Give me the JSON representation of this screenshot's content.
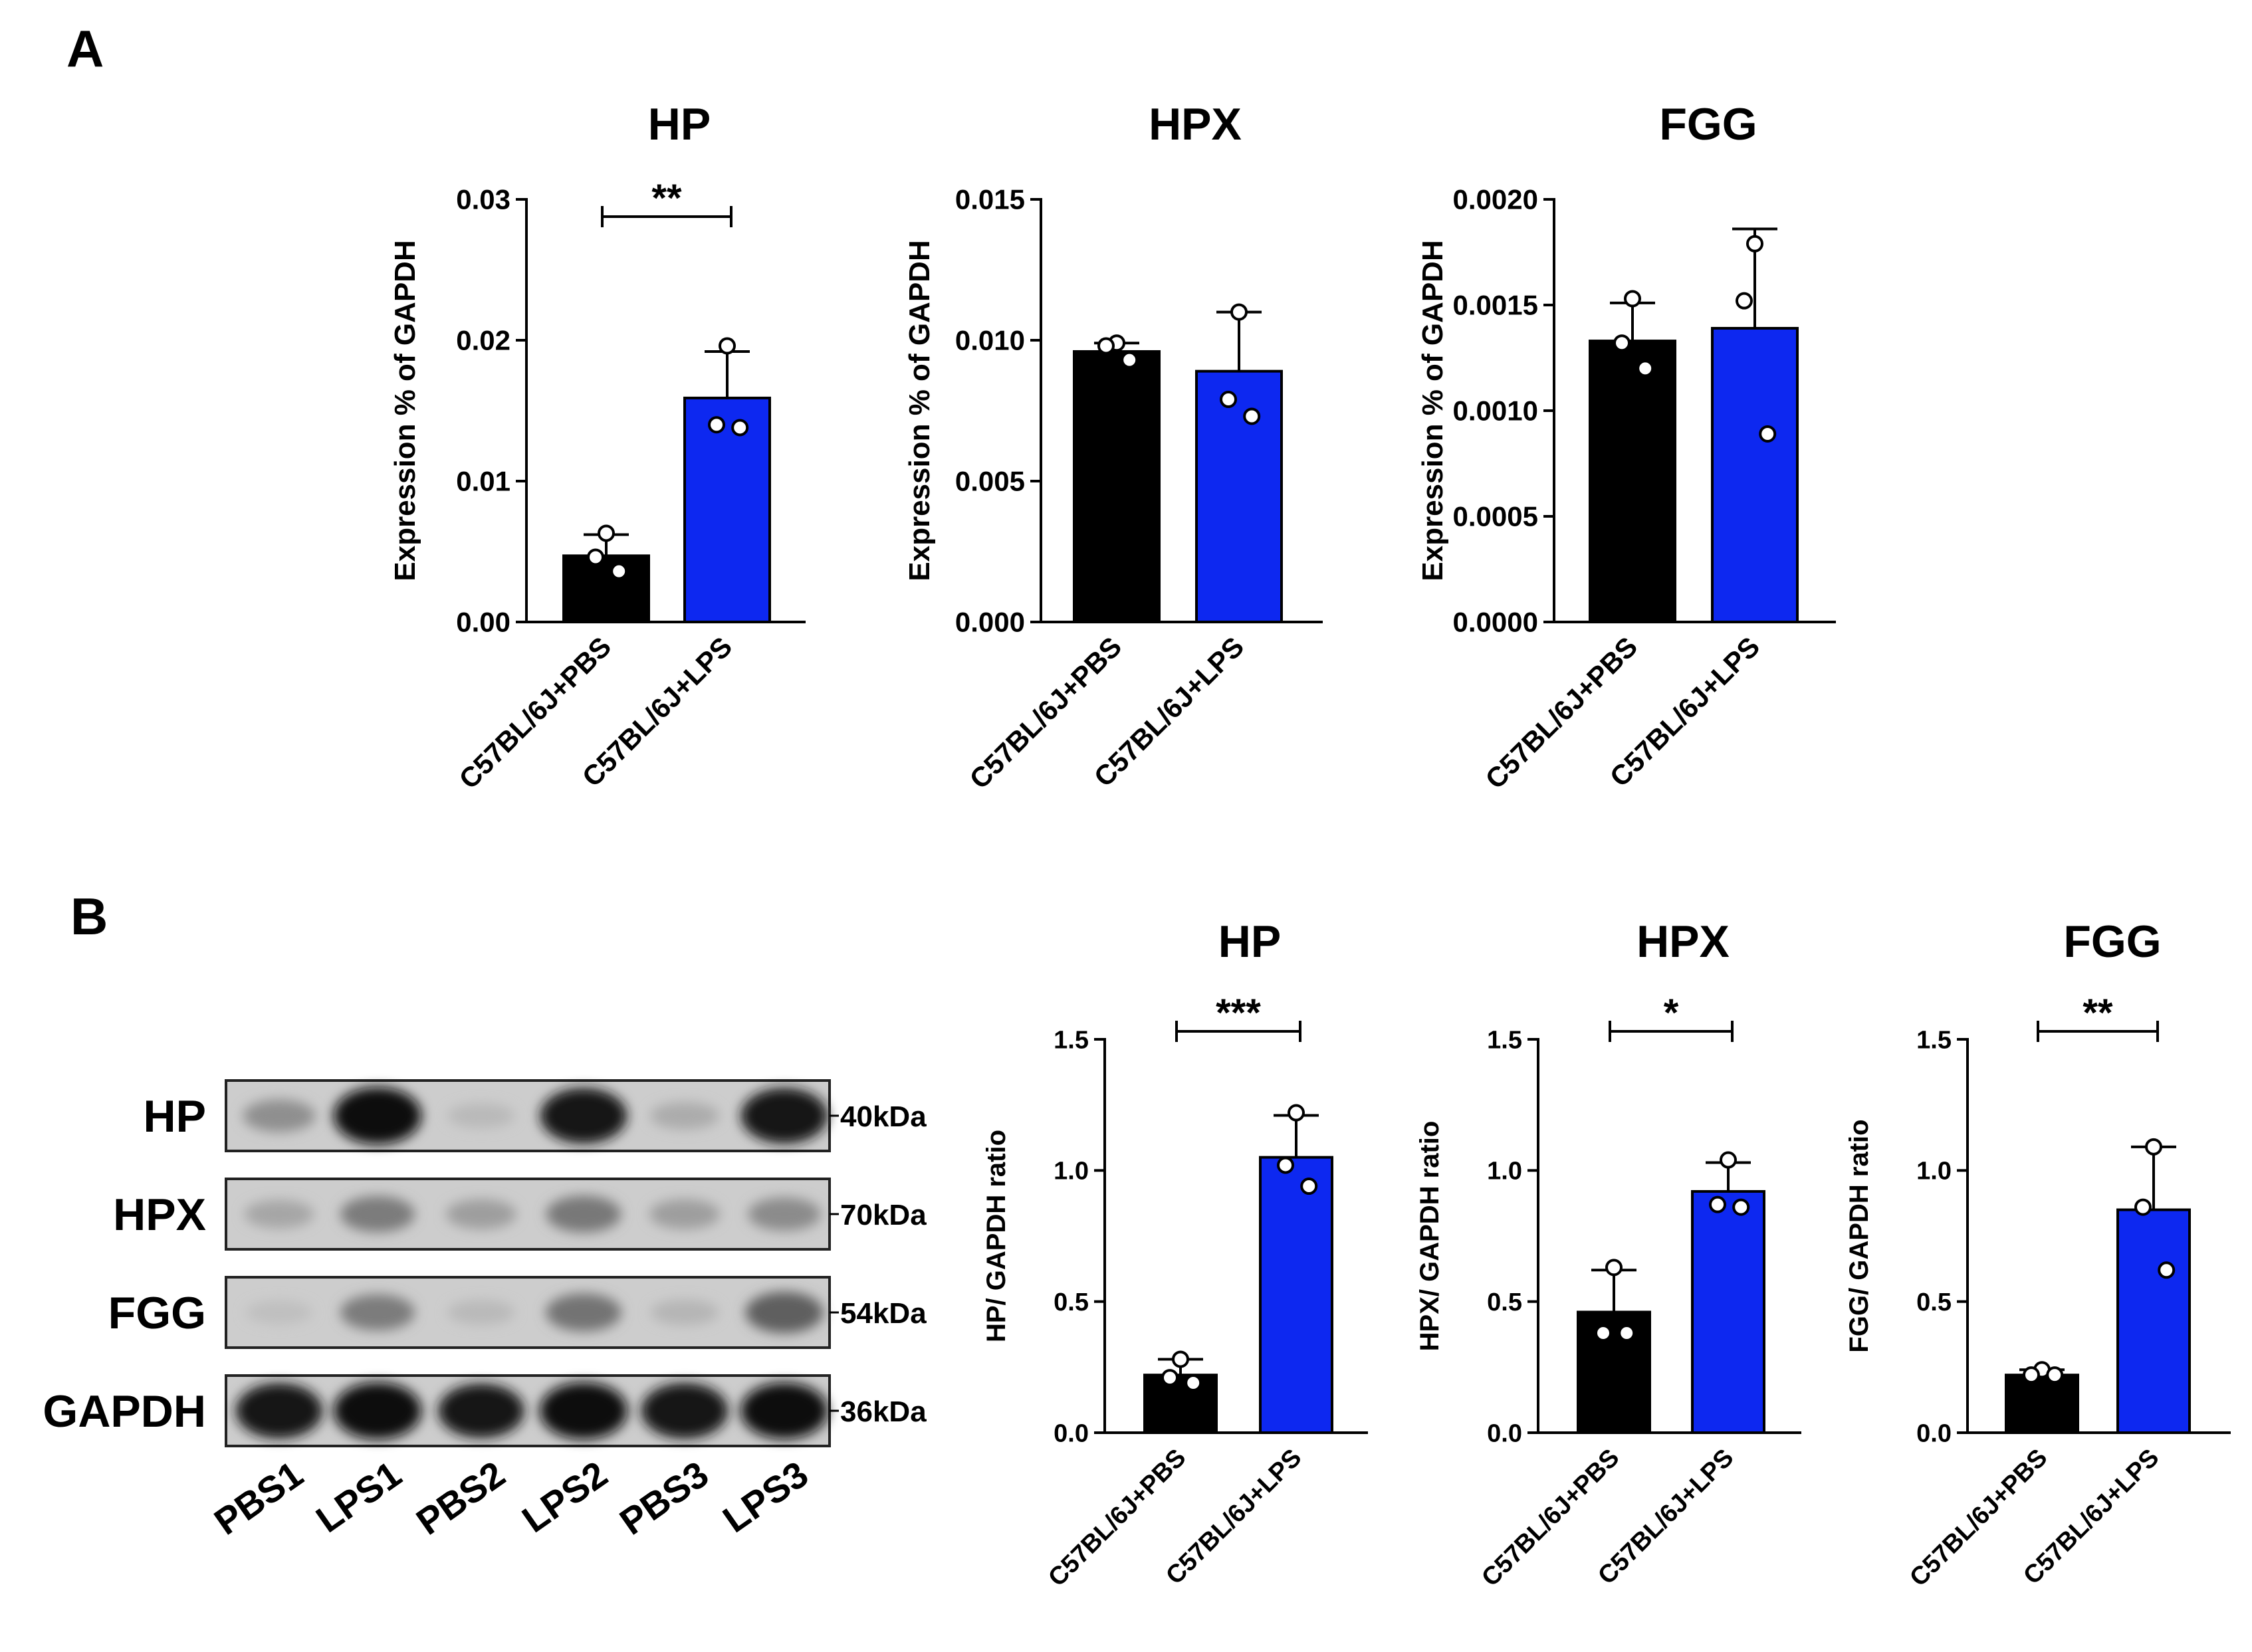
{
  "panel_labels": [
    "A",
    "B"
  ],
  "colors": {
    "pbs": "#000000",
    "lps": "#0d28f0",
    "dot_fill": "#ffffff"
  },
  "chart_data": [
    {
      "type": "bar",
      "title": "HP",
      "ylabel": "Expression % of GAPDH",
      "categories": [
        "C57BL/6J+PBS",
        "C57BL/6J+LPS"
      ],
      "values": [
        0.0047,
        0.0159
      ],
      "errors": [
        0.0015,
        0.0033
      ],
      "points": [
        [
          0.0063,
          0.0046,
          0.0036
        ],
        [
          0.0196,
          0.014,
          0.0138
        ]
      ],
      "ylim": [
        0,
        0.03
      ],
      "yticks": [
        "0.00",
        "0.01",
        "0.02",
        "0.03"
      ],
      "significance": "**"
    },
    {
      "type": "bar",
      "title": "HPX",
      "ylabel": "Expression % of GAPDH",
      "categories": [
        "C57BL/6J+PBS",
        "C57BL/6J+LPS"
      ],
      "values": [
        0.0096,
        0.0089
      ],
      "errors": [
        0.0003,
        0.0021
      ],
      "points": [
        [
          0.0099,
          0.0098,
          0.0093
        ],
        [
          0.011,
          0.0079,
          0.0073
        ]
      ],
      "ylim": [
        0,
        0.015
      ],
      "yticks": [
        "0.000",
        "0.005",
        "0.010",
        "0.015"
      ],
      "significance": ""
    },
    {
      "type": "bar",
      "title": "FGG",
      "ylabel": "Expression % of GAPDH",
      "categories": [
        "C57BL/6J+PBS",
        "C57BL/6J+LPS"
      ],
      "values": [
        0.00133,
        0.00139
      ],
      "errors": [
        0.00018,
        0.00047
      ],
      "points": [
        [
          0.00153,
          0.00132,
          0.0012
        ],
        [
          0.00179,
          0.00152,
          0.00089
        ]
      ],
      "ylim": [
        0,
        0.002
      ],
      "yticks": [
        "0.0000",
        "0.0005",
        "0.0010",
        "0.0015",
        "0.0020"
      ],
      "significance": ""
    },
    {
      "type": "bar",
      "title": "HP",
      "ylabel": "HP/ GAPDH ratio",
      "categories": [
        "C57BL/6J+PBS",
        "C57BL/6J+LPS"
      ],
      "values": [
        0.22,
        1.05
      ],
      "errors": [
        0.06,
        0.16
      ],
      "points": [
        [
          0.28,
          0.21,
          0.19
        ],
        [
          1.22,
          1.02,
          0.94
        ]
      ],
      "ylim": [
        0,
        1.5
      ],
      "yticks": [
        "0.0",
        "0.5",
        "1.0",
        "1.5"
      ],
      "significance": "***"
    },
    {
      "type": "bar",
      "title": "HPX",
      "ylabel": "HPX/ GAPDH ratio",
      "categories": [
        "C57BL/6J+PBS",
        "C57BL/6J+LPS"
      ],
      "values": [
        0.46,
        0.92
      ],
      "errors": [
        0.16,
        0.11
      ],
      "points": [
        [
          0.63,
          0.38,
          0.38
        ],
        [
          1.04,
          0.87,
          0.86
        ]
      ],
      "ylim": [
        0,
        1.5
      ],
      "yticks": [
        "0.0",
        "0.5",
        "1.0",
        "1.5"
      ],
      "significance": "*"
    },
    {
      "type": "bar",
      "title": "FGG",
      "ylabel": "FGG/ GAPDH ratio",
      "categories": [
        "C57BL/6J+PBS",
        "C57BL/6J+LPS"
      ],
      "values": [
        0.22,
        0.85
      ],
      "errors": [
        0.02,
        0.24
      ],
      "points": [
        [
          0.24,
          0.22,
          0.22
        ],
        [
          1.09,
          0.86,
          0.62
        ]
      ],
      "ylim": [
        0,
        1.5
      ],
      "yticks": [
        "0.0",
        "0.5",
        "1.0",
        "1.5"
      ],
      "significance": "**"
    }
  ],
  "western_blot": {
    "proteins": [
      {
        "name": "HP",
        "size": "40kDa",
        "intensities": [
          0.3,
          1.0,
          0.08,
          0.95,
          0.15,
          0.95
        ]
      },
      {
        "name": "HPX",
        "size": "70kDa",
        "intensities": [
          0.18,
          0.4,
          0.22,
          0.42,
          0.22,
          0.32
        ]
      },
      {
        "name": "FGG",
        "size": "54kDa",
        "intensities": [
          0.05,
          0.4,
          0.08,
          0.45,
          0.1,
          0.55
        ]
      },
      {
        "name": "GAPDH",
        "size": "36kDa",
        "intensities": [
          0.95,
          1.0,
          0.92,
          1.0,
          0.96,
          0.98
        ]
      }
    ],
    "lanes": [
      "PBS1",
      "LPS1",
      "PBS2",
      "LPS2",
      "PBS3",
      "LPS3"
    ]
  }
}
